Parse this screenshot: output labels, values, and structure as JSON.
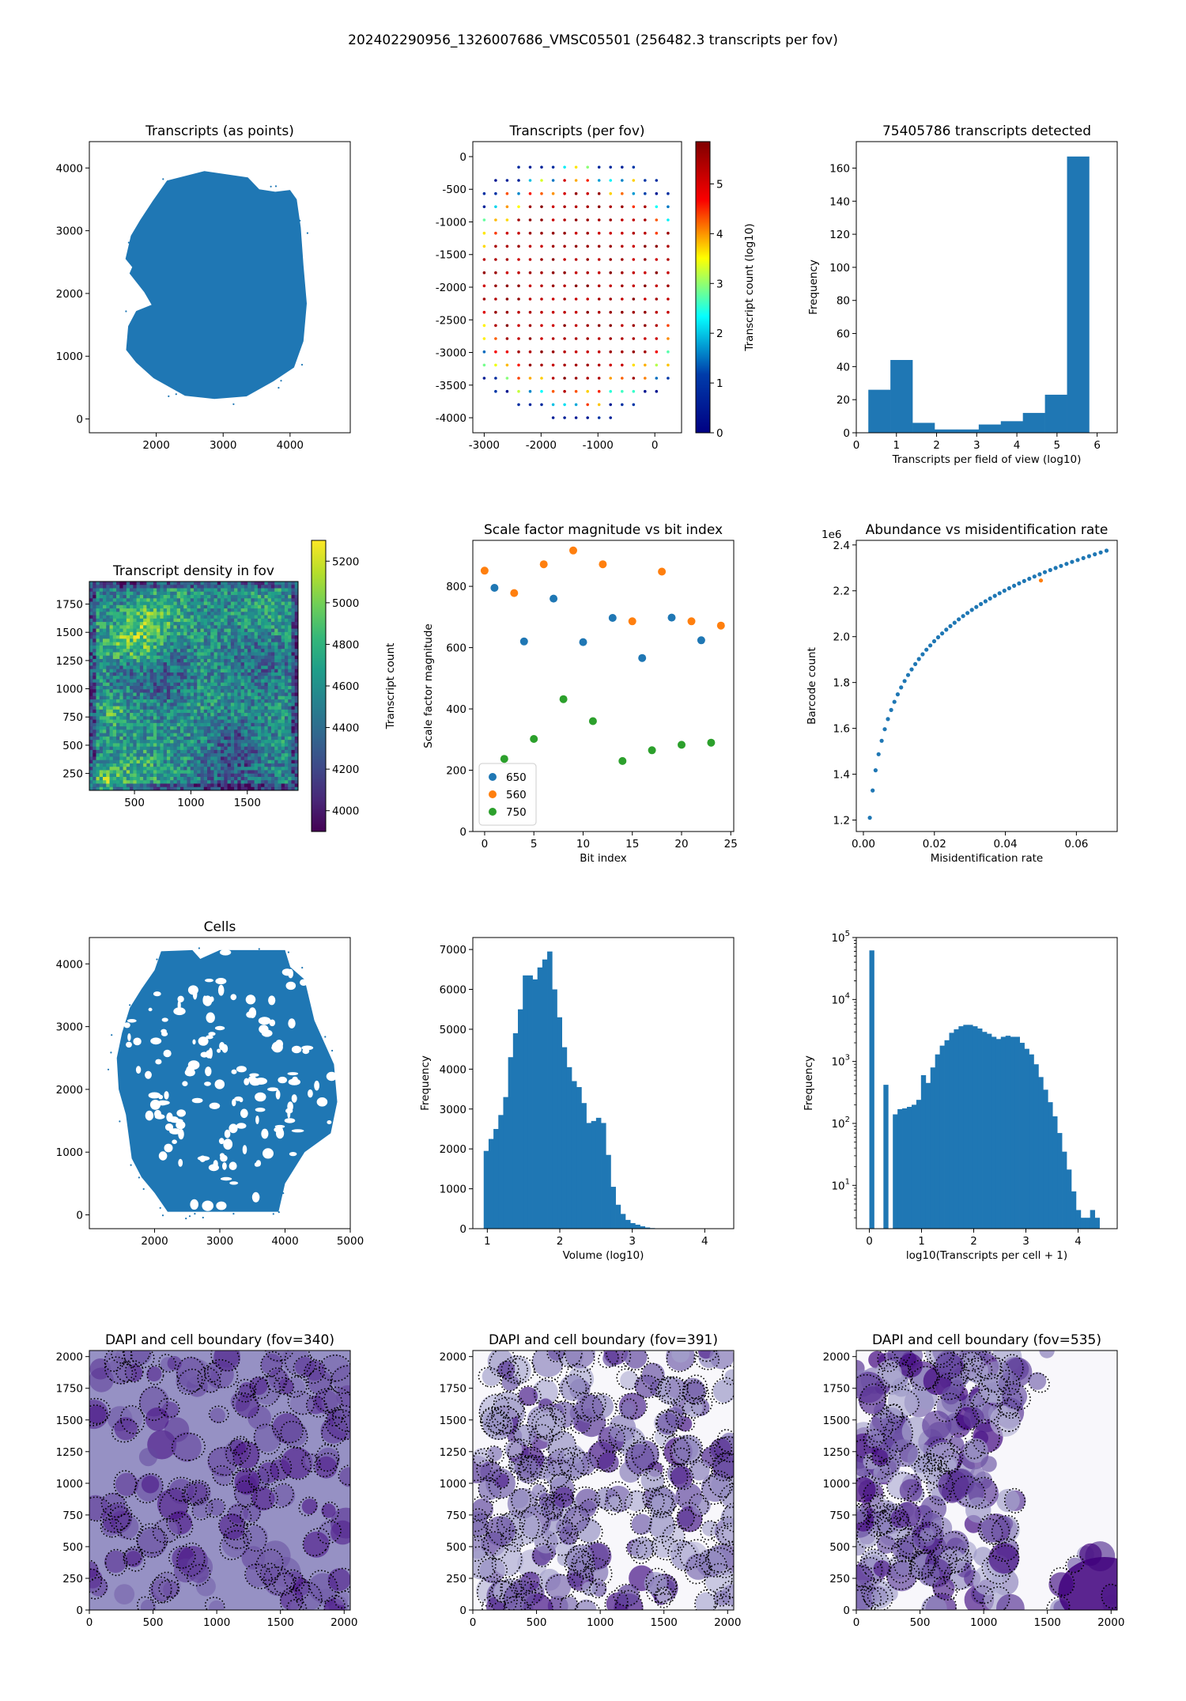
{
  "figure": {
    "suptitle": "202402290956_1326007686_VMSC05501 (256482.3 transcripts per fov)"
  },
  "colors": {
    "blue": "#1f77b4",
    "orange": "#ff7f0e",
    "green": "#2ca02c",
    "purple_dark": "#3f007d"
  },
  "chart_data": [
    {
      "id": "transcripts-points",
      "type": "scatter",
      "title": "Transcripts (as points)",
      "xlabel": "",
      "ylabel": "",
      "xlim": [
        1000,
        4900
      ],
      "ylim": [
        -220,
        4420
      ],
      "xticks": [
        2000,
        3000,
        4000
      ],
      "yticks": [
        0,
        1000,
        2000,
        3000,
        4000
      ],
      "region_outline": [
        [
          1540,
          2550
        ],
        [
          1640,
          2420
        ],
        [
          1600,
          2320
        ],
        [
          1820,
          2020
        ],
        [
          1930,
          1820
        ],
        [
          1700,
          1720
        ],
        [
          1580,
          1480
        ],
        [
          1550,
          1100
        ],
        [
          1700,
          900
        ],
        [
          1960,
          650
        ],
        [
          2430,
          370
        ],
        [
          2870,
          320
        ],
        [
          3350,
          360
        ],
        [
          3750,
          600
        ],
        [
          4060,
          820
        ],
        [
          4200,
          1240
        ],
        [
          4250,
          1840
        ],
        [
          4200,
          2450
        ],
        [
          4160,
          3050
        ],
        [
          4100,
          3500
        ],
        [
          4000,
          3650
        ],
        [
          3780,
          3620
        ],
        [
          3540,
          3660
        ],
        [
          3370,
          3850
        ],
        [
          2720,
          3950
        ],
        [
          2160,
          3800
        ],
        [
          1950,
          3480
        ],
        [
          1760,
          3170
        ],
        [
          1620,
          2920
        ]
      ],
      "color": "#1f77b4"
    },
    {
      "id": "transcripts-per-fov",
      "type": "scatter",
      "title": "Transcripts (per fov)",
      "xlabel": "",
      "ylabel": "",
      "xlim": [
        -3200,
        470
      ],
      "ylim": [
        -4230,
        230
      ],
      "xticks": [
        -3000,
        -2000,
        -1000,
        0
      ],
      "yticks": [
        0,
        -500,
        -1000,
        -1500,
        -2000,
        -2500,
        -3000,
        -3500,
        -4000
      ],
      "colorbar": {
        "label": "Transcript count (log10)",
        "range": [
          0,
          5.85
        ],
        "ticks": [
          0,
          1,
          2,
          3,
          4,
          5
        ]
      },
      "grid_spacing": 202,
      "center": [
        -1370,
        -2000
      ],
      "radius": 2400
    },
    {
      "id": "transcripts-histogram",
      "type": "bar",
      "title": "75405786 transcripts detected",
      "xlabel": "Transcripts per field of view (log10)",
      "ylabel": "Frequency",
      "xlim": [
        0,
        6.5
      ],
      "ylim": [
        0,
        176
      ],
      "xticks": [
        0,
        1,
        2,
        3,
        4,
        5,
        6
      ],
      "yticks": [
        0,
        20,
        40,
        60,
        80,
        100,
        120,
        140,
        160
      ],
      "bin_edges": [
        0.3,
        0.85,
        1.4,
        1.95,
        2.5,
        3.05,
        3.6,
        4.15,
        4.7,
        5.25,
        5.8
      ],
      "values": [
        26,
        44,
        6,
        2,
        2,
        5,
        7,
        12,
        23,
        167
      ],
      "color": "#1f77b4"
    },
    {
      "id": "density-heatmap",
      "type": "heatmap",
      "title": "Transcript density in fov",
      "xlabel": "",
      "ylabel": "",
      "xlim": [
        100,
        1950
      ],
      "ylim": [
        100,
        1950
      ],
      "xticks": [
        500,
        1000,
        1500
      ],
      "yticks": [
        250,
        500,
        750,
        1000,
        1250,
        1500,
        1750
      ],
      "colorbar": {
        "label": "Transcript count",
        "range": [
          3900,
          5300
        ],
        "ticks": [
          4000,
          4200,
          4400,
          4600,
          4800,
          5000,
          5200
        ]
      }
    },
    {
      "id": "scale-factor",
      "type": "scatter",
      "title": "Scale factor magnitude vs bit index",
      "xlabel": "Bit index",
      "ylabel": "Scale factor magnitude",
      "xlim": [
        -1.2,
        25.3
      ],
      "ylim": [
        0,
        950
      ],
      "xticks": [
        0,
        5,
        10,
        15,
        20,
        25
      ],
      "yticks": [
        0,
        200,
        400,
        600,
        800
      ],
      "legend_position": "lower-left",
      "series": [
        {
          "name": "650",
          "x": [
            1,
            4,
            7,
            10,
            13,
            16,
            19,
            22
          ],
          "y": [
            795,
            620,
            760,
            618,
            697,
            566,
            698,
            624
          ]
        },
        {
          "name": "560",
          "x": [
            0,
            3,
            6,
            9,
            12,
            15,
            18,
            21,
            24
          ],
          "y": [
            851,
            778,
            872,
            917,
            872,
            686,
            848,
            686,
            672
          ]
        },
        {
          "name": "750",
          "x": [
            2,
            5,
            8,
            11,
            14,
            17,
            20,
            23
          ],
          "y": [
            237,
            302,
            432,
            360,
            230,
            265,
            283,
            290
          ]
        }
      ]
    },
    {
      "id": "abundance-misid",
      "type": "scatter",
      "title": "Abundance vs misidentification rate",
      "xlabel": "Misidentification rate",
      "ylabel": "Barcode count",
      "multiplier": "1e6",
      "xlim": [
        -0.002,
        0.0715
      ],
      "ylim": [
        1.15,
        2.42
      ],
      "xticks": [
        0.0,
        0.02,
        0.04,
        0.06
      ],
      "xtick_labels": [
        "0.00",
        "0.02",
        "0.04",
        "0.06"
      ],
      "yticks": [
        1.2,
        1.4,
        1.6,
        1.8,
        2.0,
        2.2,
        2.4
      ],
      "ytick_labels": [
        "1.2",
        "1.4",
        "1.6",
        "1.8",
        "2.0",
        "2.2",
        "2.4"
      ],
      "curve": {
        "x_start": 0.0018,
        "x_end": 0.0685,
        "points": 55,
        "y_at_start": 1.21,
        "y_at_end": 2.375
      },
      "highlight": {
        "x": 0.05,
        "y": 2.245,
        "color": "#ff7f0e"
      },
      "color": "#1f77b4"
    },
    {
      "id": "cells",
      "type": "scatter",
      "title": "Cells",
      "xlabel": "",
      "ylabel": "",
      "xlim": [
        1000,
        5000
      ],
      "ylim": [
        -220,
        4420
      ],
      "xticks": [
        2000,
        3000,
        4000,
        5000
      ],
      "yticks": [
        0,
        1000,
        2000,
        3000,
        4000
      ],
      "region_outline": [
        [
          2580,
          4220
        ],
        [
          2700,
          4080
        ],
        [
          3000,
          4220
        ],
        [
          4000,
          4220
        ],
        [
          4080,
          3950
        ],
        [
          4300,
          3750
        ],
        [
          4450,
          3100
        ],
        [
          4750,
          2400
        ],
        [
          4800,
          1800
        ],
        [
          4700,
          1300
        ],
        [
          4300,
          1000
        ],
        [
          4000,
          500
        ],
        [
          3900,
          50
        ],
        [
          2200,
          50
        ],
        [
          2000,
          350
        ],
        [
          1800,
          600
        ],
        [
          1650,
          900
        ],
        [
          1560,
          1600
        ],
        [
          1450,
          2000
        ],
        [
          1420,
          2500
        ],
        [
          1500,
          2900
        ],
        [
          1620,
          3300
        ],
        [
          1800,
          3600
        ],
        [
          2000,
          3900
        ],
        [
          2100,
          4200
        ]
      ],
      "color": "#1f77b4"
    },
    {
      "id": "volume-histogram",
      "type": "bar",
      "title": "",
      "xlabel": "Volume (log10)",
      "ylabel": "Frequency",
      "xlim": [
        0.8,
        4.4
      ],
      "ylim": [
        0,
        7300
      ],
      "xticks": [
        1,
        2,
        3,
        4
      ],
      "yticks": [
        0,
        1000,
        2000,
        3000,
        4000,
        5000,
        6000,
        7000
      ],
      "bin_start": 0.95,
      "bin_width": 0.0674,
      "values": [
        1950,
        2250,
        2500,
        2850,
        3300,
        4300,
        4900,
        5500,
        6350,
        6350,
        6250,
        6550,
        6750,
        6950,
        6000,
        5300,
        4550,
        4050,
        3700,
        3550,
        3150,
        2650,
        2700,
        2780,
        2650,
        1850,
        1050,
        600,
        370,
        220,
        140,
        100,
        60,
        30,
        15,
        8,
        4,
        2,
        1,
        0,
        0,
        1,
        1
      ],
      "color": "#1f77b4"
    },
    {
      "id": "transcripts-per-cell",
      "type": "bar",
      "title": "",
      "xlabel": "log10(Transcripts per cell + 1)",
      "ylabel": "Frequency",
      "scale": "log",
      "xlim": [
        -0.25,
        4.75
      ],
      "ylim": [
        2,
        100000
      ],
      "xticks": [
        0,
        1,
        2,
        3,
        4
      ],
      "ytick_exponents": [
        1,
        2,
        3,
        4,
        5
      ],
      "bin_start": 0.0,
      "bin_width": 0.09,
      "values": [
        62000,
        0,
        0,
        420,
        0,
        140,
        170,
        175,
        185,
        200,
        240,
        600,
        450,
        800,
        1300,
        1800,
        2200,
        2900,
        3300,
        3700,
        3900,
        3900,
        3700,
        3400,
        3000,
        2800,
        2500,
        2300,
        2500,
        2600,
        2500,
        2500,
        2000,
        1600,
        1300,
        900,
        560,
        350,
        220,
        130,
        70,
        35,
        18,
        8,
        4,
        3,
        3,
        4,
        3,
        2
      ],
      "color": "#1f77b4"
    },
    {
      "id": "dapi-fov-340",
      "type": "heatmap",
      "title": "DAPI and cell boundary (fov=340)",
      "xlabel": "",
      "ylabel": "",
      "xlim": [
        0,
        2048
      ],
      "ylim": [
        0,
        2048
      ],
      "xticks": [
        0,
        500,
        1000,
        1500,
        2000
      ],
      "yticks": [
        0,
        250,
        500,
        750,
        1000,
        1250,
        1500,
        1750,
        2000
      ],
      "colormap": "Purples"
    },
    {
      "id": "dapi-fov-391",
      "type": "heatmap",
      "title": "DAPI and cell boundary (fov=391)",
      "xlabel": "",
      "ylabel": "",
      "xlim": [
        0,
        2048
      ],
      "ylim": [
        0,
        2048
      ],
      "xticks": [
        0,
        500,
        1000,
        1500,
        2000
      ],
      "yticks": [
        0,
        250,
        500,
        750,
        1000,
        1250,
        1500,
        1750,
        2000
      ],
      "colormap": "Purples"
    },
    {
      "id": "dapi-fov-535",
      "type": "heatmap",
      "title": "DAPI and cell boundary (fov=535)",
      "xlabel": "",
      "ylabel": "",
      "xlim": [
        0,
        2048
      ],
      "ylim": [
        0,
        2048
      ],
      "xticks": [
        0,
        500,
        1000,
        1500,
        2000
      ],
      "yticks": [
        0,
        250,
        500,
        750,
        1000,
        1250,
        1500,
        1750,
        2000
      ],
      "colormap": "Purples"
    }
  ]
}
